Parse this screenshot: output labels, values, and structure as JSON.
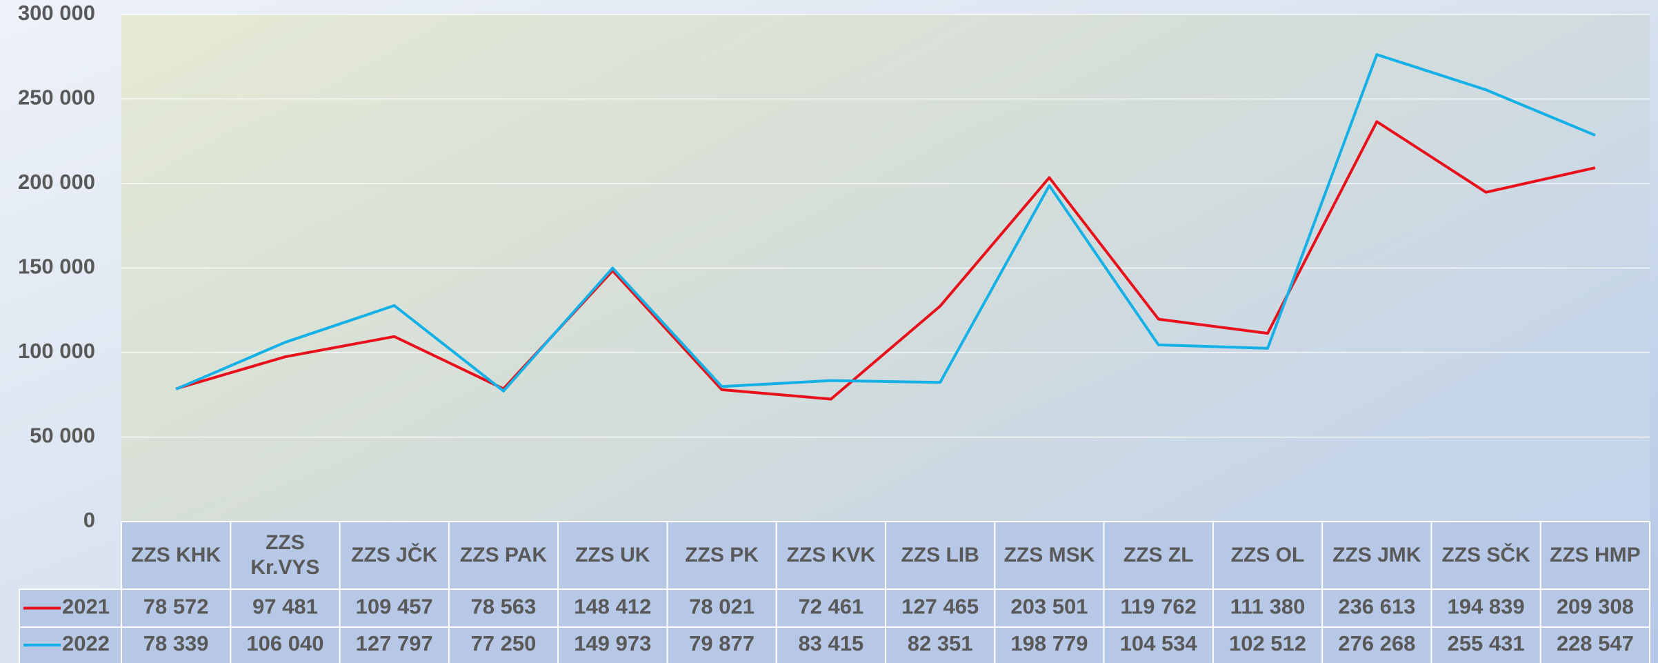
{
  "chart_data": {
    "type": "line",
    "categories": [
      "ZZS KHK",
      "ZZS Kr.VYS",
      "ZZS JČK",
      "ZZS PAK",
      "ZZS UK",
      "ZZS PK",
      "ZZS KVK",
      "ZZS LIB",
      "ZZS MSK",
      "ZZS ZL",
      "ZZS OL",
      "ZZS JMK",
      "ZZS SČK",
      "ZZS HMP"
    ],
    "series": [
      {
        "name": "2021",
        "color": "#e8101a",
        "values": [
          78572,
          97481,
          109457,
          78563,
          148412,
          78021,
          72461,
          127465,
          203501,
          119762,
          111380,
          236613,
          194839,
          209308
        ],
        "value_labels": [
          "78 572",
          "97 481",
          "109 457",
          "78 563",
          "148 412",
          "78 021",
          "72 461",
          "127 465",
          "203 501",
          "119 762",
          "111 380",
          "236 613",
          "194 839",
          "209 308"
        ]
      },
      {
        "name": "2022",
        "color": "#14b0e6",
        "values": [
          78339,
          106040,
          127797,
          77250,
          149973,
          79877,
          83415,
          82351,
          198779,
          104534,
          102512,
          276268,
          255431,
          228547
        ],
        "value_labels": [
          "78 339",
          "106 040",
          "127 797",
          "77 250",
          "149 973",
          "79 877",
          "83 415",
          "82 351",
          "198 779",
          "104 534",
          "102 512",
          "276 268",
          "255 431",
          "228 547"
        ]
      }
    ],
    "ylim": [
      0,
      300000
    ],
    "yticks": [
      0,
      {
        "value": 50000,
        "label": "50 000"
      },
      {
        "value": 100000,
        "label": "100 000"
      },
      {
        "value": 150000,
        "label": "150 000"
      },
      {
        "value": 200000,
        "label": "200 000"
      },
      {
        "value": 250000,
        "label": "250 000"
      },
      {
        "value": 300000,
        "label": "300 000"
      }
    ],
    "grid": true
  }
}
